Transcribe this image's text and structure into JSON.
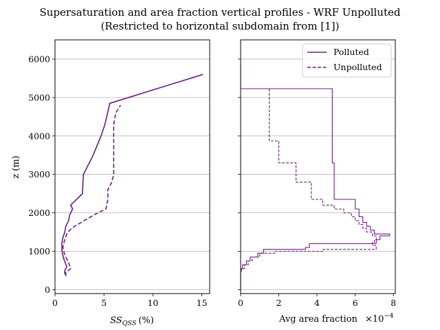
{
  "title": {
    "line1": "Supersaturation and area fraction vertical profiles - WRF Unpolluted",
    "line2": "(Restricted to horizontal subdomain from [1])"
  },
  "colors": {
    "series": "#6a1b7f",
    "grid": "#b0b0b0",
    "axes": "#000000"
  },
  "chart_data": [
    {
      "type": "line",
      "xlabel": "SS",
      "xlabel_subscript": "QSS",
      "xlabel_unit": "(%)",
      "ylabel": "z (m)",
      "xlim": [
        0,
        15.8
      ],
      "ylim": [
        -100,
        6500
      ],
      "xticks": [
        0,
        5,
        10,
        15
      ],
      "xtick_labels": [
        "0",
        "5",
        "10",
        "15"
      ],
      "yticks": [
        0,
        1000,
        2000,
        3000,
        4000,
        5000,
        6000
      ],
      "ytick_labels": [
        "0",
        "1000",
        "2000",
        "3000",
        "4000",
        "5000",
        "6000"
      ],
      "grid": "y",
      "series": [
        {
          "name": "Polluted",
          "style": "solid",
          "points": [
            [
              1.0,
              400
            ],
            [
              1.0,
              500
            ],
            [
              1.2,
              600
            ],
            [
              0.9,
              800
            ],
            [
              0.7,
              1000
            ],
            [
              0.7,
              1200
            ],
            [
              0.8,
              1350
            ],
            [
              1.0,
              1500
            ],
            [
              1.1,
              1650
            ],
            [
              1.4,
              1800
            ],
            [
              1.5,
              1950
            ],
            [
              1.8,
              2100
            ],
            [
              1.6,
              2200
            ],
            [
              2.8,
              2500
            ],
            [
              2.9,
              3000
            ],
            [
              3.9,
              3500
            ],
            [
              4.7,
              4000
            ],
            [
              5.1,
              4300
            ],
            [
              5.6,
              4850
            ],
            [
              15.1,
              5600
            ]
          ]
        },
        {
          "name": "Unpolluted",
          "style": "dashed",
          "points": [
            [
              1.1,
              350
            ],
            [
              1.1,
              450
            ],
            [
              1.6,
              550
            ],
            [
              1.4,
              700
            ],
            [
              1.0,
              900
            ],
            [
              0.8,
              1100
            ],
            [
              1.0,
              1300
            ],
            [
              1.2,
              1450
            ],
            [
              1.5,
              1550
            ],
            [
              2.0,
              1650
            ],
            [
              3.0,
              1800
            ],
            [
              4.0,
              1950
            ],
            [
              5.2,
              2100
            ],
            [
              5.4,
              2350
            ],
            [
              5.4,
              2600
            ],
            [
              5.8,
              2800
            ],
            [
              6.0,
              3000
            ],
            [
              6.0,
              3500
            ],
            [
              6.0,
              4000
            ],
            [
              6.0,
              4300
            ],
            [
              6.2,
              4600
            ],
            [
              6.7,
              4800
            ]
          ]
        }
      ]
    },
    {
      "type": "line",
      "xlabel": "Avg area fraction",
      "x_multiplier": "×10",
      "x_multiplier_exp": "−4",
      "ylabel": "",
      "xlim": [
        0,
        8.1
      ],
      "ylim": [
        -100,
        6500
      ],
      "xticks": [
        0,
        2,
        4,
        6,
        8
      ],
      "xtick_labels": [
        "0",
        "2",
        "4",
        "6",
        "8"
      ],
      "yticks": [
        0,
        1000,
        2000,
        3000,
        4000,
        5000,
        6000
      ],
      "grid": "y",
      "legend": {
        "placement": "top-right",
        "entries": [
          "Polluted",
          "Unpolluted"
        ]
      },
      "series": [
        {
          "name": "Polluted",
          "style": "solid",
          "points": [
            [
              0,
              5900
            ],
            [
              0,
              5230
            ],
            [
              4.8,
              5230
            ],
            [
              4.8,
              3300
            ],
            [
              4.9,
              3300
            ],
            [
              4.9,
              2350
            ],
            [
              6.0,
              2350
            ],
            [
              6.0,
              2100
            ],
            [
              6.2,
              2100
            ],
            [
              6.2,
              1900
            ],
            [
              6.4,
              1900
            ],
            [
              6.4,
              1750
            ],
            [
              6.6,
              1750
            ],
            [
              6.6,
              1650
            ],
            [
              6.8,
              1650
            ],
            [
              6.8,
              1550
            ],
            [
              7.0,
              1550
            ],
            [
              7.0,
              1450
            ],
            [
              7.8,
              1450
            ],
            [
              7.8,
              1400
            ],
            [
              7.3,
              1400
            ],
            [
              7.3,
              1300
            ],
            [
              7.1,
              1300
            ],
            [
              7.1,
              1200
            ],
            [
              3.6,
              1200
            ],
            [
              3.6,
              1100
            ],
            [
              3.4,
              1100
            ],
            [
              3.4,
              1050
            ],
            [
              1.2,
              1050
            ],
            [
              1.2,
              950
            ],
            [
              0.9,
              950
            ],
            [
              0.9,
              850
            ],
            [
              0.5,
              850
            ],
            [
              0.5,
              750
            ],
            [
              0.3,
              750
            ],
            [
              0.3,
              650
            ],
            [
              0.1,
              650
            ],
            [
              0.1,
              550
            ],
            [
              0,
              550
            ],
            [
              0,
              0
            ]
          ]
        },
        {
          "name": "Unpolluted",
          "style": "dashed",
          "points": [
            [
              0,
              5230
            ],
            [
              1.5,
              5230
            ],
            [
              1.5,
              3870
            ],
            [
              2.0,
              3870
            ],
            [
              2.0,
              3300
            ],
            [
              2.9,
              3300
            ],
            [
              2.9,
              2800
            ],
            [
              3.7,
              2800
            ],
            [
              3.7,
              2350
            ],
            [
              4.3,
              2350
            ],
            [
              4.3,
              2200
            ],
            [
              4.9,
              2200
            ],
            [
              4.9,
              2100
            ],
            [
              5.4,
              2100
            ],
            [
              5.4,
              2000
            ],
            [
              5.8,
              2000
            ],
            [
              5.8,
              1900
            ],
            [
              6.0,
              1900
            ],
            [
              6.0,
              1800
            ],
            [
              6.2,
              1800
            ],
            [
              6.2,
              1700
            ],
            [
              6.4,
              1700
            ],
            [
              6.4,
              1600
            ],
            [
              6.6,
              1600
            ],
            [
              6.6,
              1500
            ],
            [
              6.9,
              1500
            ],
            [
              6.9,
              1400
            ],
            [
              7.1,
              1400
            ],
            [
              7.1,
              1300
            ],
            [
              7.0,
              1300
            ],
            [
              7.0,
              1230
            ],
            [
              6.9,
              1230
            ],
            [
              6.9,
              1150
            ],
            [
              7.1,
              1150
            ],
            [
              7.1,
              1050
            ],
            [
              4.3,
              1050
            ],
            [
              4.3,
              1000
            ],
            [
              1.8,
              1000
            ],
            [
              1.8,
              950
            ],
            [
              1.0,
              950
            ],
            [
              1.0,
              850
            ],
            [
              0.6,
              850
            ],
            [
              0.6,
              750
            ],
            [
              0.4,
              750
            ],
            [
              0.4,
              650
            ],
            [
              0.2,
              650
            ],
            [
              0.2,
              550
            ],
            [
              0.05,
              550
            ],
            [
              0.05,
              450
            ],
            [
              0,
              450
            ],
            [
              0,
              0
            ]
          ]
        }
      ]
    }
  ]
}
